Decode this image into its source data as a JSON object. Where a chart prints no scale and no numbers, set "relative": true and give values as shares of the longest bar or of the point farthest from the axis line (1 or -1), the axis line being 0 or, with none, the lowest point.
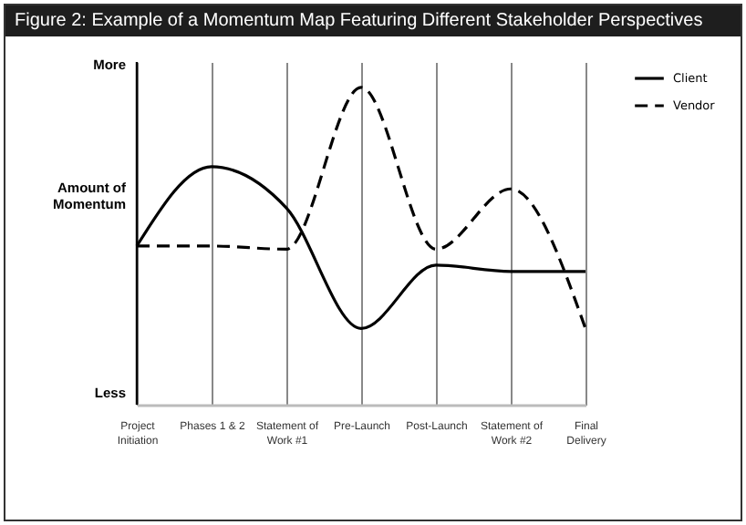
{
  "chart_data": {
    "type": "line",
    "title": "Figure 2: Example of a Momentum Map Featuring Different Stakeholder Perspectives",
    "ylabel": "Amount of Momentum",
    "annotations": [
      "More",
      "Less"
    ],
    "categories": [
      "Project Initiation",
      "Phases 1 & 2",
      "Statement of Work #1",
      "Pre-Launch",
      "Post-Launch",
      "Statement of Work #2",
      "Final Delivery"
    ],
    "relative": true,
    "grid": "x",
    "legend": "right",
    "series": [
      {
        "name": "Client",
        "color": "#000000",
        "line_style": "solid",
        "values": [
          0.5,
          0.75,
          0.62,
          0.24,
          0.44,
          0.42,
          0.42
        ]
      },
      {
        "name": "Vendor",
        "color": "#000000",
        "line_style": "dashed",
        "values": [
          0.5,
          0.5,
          0.49,
          1,
          0.49,
          0.68,
          0.24
        ]
      }
    ]
  }
}
